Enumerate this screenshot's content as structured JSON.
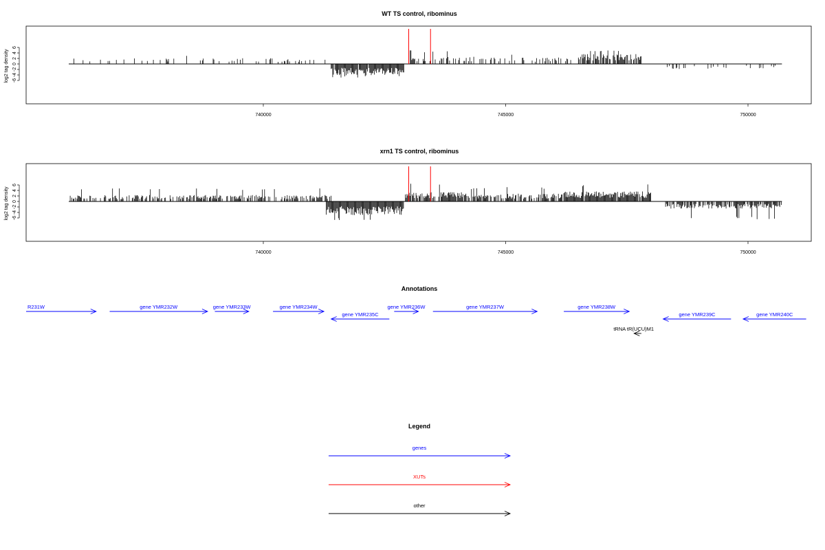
{
  "colors": {
    "genes": "#0000ff",
    "xuts": "#ff0000",
    "other": "#000000",
    "axis": "#000000"
  },
  "chart_data": [
    {
      "type": "bar",
      "title": "WT TS control, ribominus",
      "ylabel": "log2 tag density",
      "ylim": [
        -7.5,
        7
      ],
      "xlim": [
        735000,
        751000
      ],
      "yticks": [
        "6",
        "4",
        "2",
        "0",
        "-2",
        "-4",
        "-6"
      ],
      "xticks": [
        "740000",
        "745000",
        "750000"
      ],
      "grid": false,
      "segments": [
        {
          "strand": "+",
          "from": 736000,
          "to": 741300,
          "density": 0.18,
          "mean": 1.6,
          "max": 3.4
        },
        {
          "strand": "-",
          "from": 741400,
          "to": 742900,
          "density": 0.95,
          "mean": -3.2,
          "max": -5.0
        },
        {
          "strand": "+",
          "from": 743000,
          "to": 745000,
          "density": 0.35,
          "mean": 2.0,
          "max": 5.0
        },
        {
          "strand": "+",
          "from": 745000,
          "to": 746500,
          "density": 0.3,
          "mean": 1.8,
          "max": 3.6
        },
        {
          "strand": "+",
          "from": 746500,
          "to": 747800,
          "density": 0.75,
          "mean": 2.8,
          "max": 5.0
        },
        {
          "strand": "-",
          "from": 748300,
          "to": 750600,
          "density": 0.22,
          "mean": -1.4,
          "max": -5.0
        }
      ],
      "xut_lines": [
        743000,
        743450
      ]
    },
    {
      "type": "bar",
      "title": "xrn1 TS control, ribominus",
      "ylabel": "log2 tag density",
      "ylim": [
        -7.5,
        7
      ],
      "xlim": [
        735000,
        751000
      ],
      "yticks": [
        "6",
        "4",
        "2",
        "0",
        "-2",
        "-4",
        "-6"
      ],
      "xticks": [
        "740000",
        "745000",
        "750000"
      ],
      "grid": false,
      "segments": [
        {
          "strand": "+",
          "from": 736000,
          "to": 741400,
          "density": 0.55,
          "mean": 1.8,
          "max": 4.8
        },
        {
          "strand": "-",
          "from": 741300,
          "to": 742900,
          "density": 1.0,
          "mean": -3.8,
          "max": -6.8
        },
        {
          "strand": "+",
          "from": 742900,
          "to": 744200,
          "density": 0.85,
          "mean": 2.6,
          "max": 6.5
        },
        {
          "strand": "+",
          "from": 744200,
          "to": 746200,
          "density": 0.6,
          "mean": 2.2,
          "max": 5.2
        },
        {
          "strand": "+",
          "from": 746200,
          "to": 748000,
          "density": 0.95,
          "mean": 2.8,
          "max": 6.2
        },
        {
          "strand": "-",
          "from": 748300,
          "to": 750700,
          "density": 0.7,
          "mean": -2.0,
          "max": -6.5
        }
      ],
      "xut_lines": [
        743000,
        743450
      ]
    }
  ],
  "annotations": {
    "title": "Annotations",
    "features": [
      {
        "label": "R231W",
        "kind": "genes",
        "strand": "+",
        "start": 735050,
        "end": 736550,
        "row": 0
      },
      {
        "label": "gene YMR232W",
        "kind": "genes",
        "strand": "+",
        "start": 736830,
        "end": 738850,
        "row": 0
      },
      {
        "label": "gene YMR233W",
        "kind": "genes",
        "strand": "+",
        "start": 739000,
        "end": 739700,
        "row": 0
      },
      {
        "label": "gene YMR234W",
        "kind": "genes",
        "strand": "+",
        "start": 740200,
        "end": 741250,
        "row": 0
      },
      {
        "label": "gene YMR235C",
        "kind": "genes",
        "strand": "-",
        "start": 741400,
        "end": 742600,
        "row": 1
      },
      {
        "label": "gene YMR236W",
        "kind": "genes",
        "strand": "+",
        "start": 742700,
        "end": 743200,
        "row": 0
      },
      {
        "label": "gene YMR237W",
        "kind": "genes",
        "strand": "+",
        "start": 743500,
        "end": 745650,
        "row": 0
      },
      {
        "label": "gene YMR238W",
        "kind": "genes",
        "strand": "+",
        "start": 746200,
        "end": 747550,
        "row": 0
      },
      {
        "label": "gene YMR239C",
        "kind": "genes",
        "strand": "-",
        "start": 748250,
        "end": 749650,
        "row": 1
      },
      {
        "label": "gene YMR240C",
        "kind": "genes",
        "strand": "-",
        "start": 749900,
        "end": 751200,
        "row": 1
      },
      {
        "label": "tRNA tR(UCU)M1",
        "kind": "other",
        "strand": "-",
        "start": 747650,
        "end": 747800,
        "row": 2
      }
    ]
  },
  "legend": {
    "title": "Legend",
    "entries": [
      {
        "label": "genes",
        "kind": "genes"
      },
      {
        "label": "XUTs",
        "kind": "xuts"
      },
      {
        "label": "other",
        "kind": "other"
      }
    ]
  }
}
